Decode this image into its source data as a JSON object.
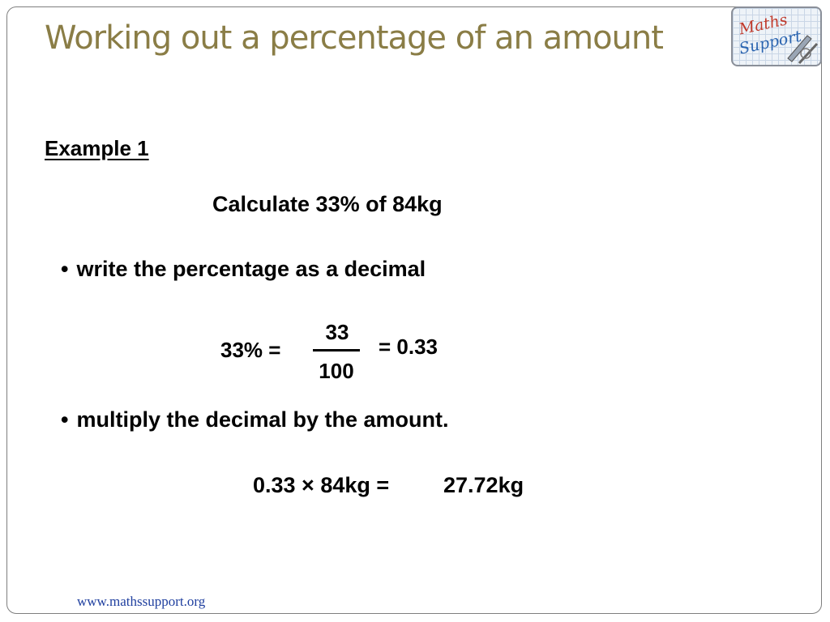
{
  "slide": {
    "title": "Working out a percentage of an amount",
    "example_label": "Example 1",
    "task": "Calculate 33% of 84kg",
    "bullet_symbol": "•",
    "step1": "write the percentage as a decimal",
    "fraction_lhs": "33% =",
    "fraction_numerator": "33",
    "fraction_denominator": "100",
    "fraction_rhs": "= 0.33",
    "step2": "multiply the decimal by the amount.",
    "calculation": "0.33 × 84kg =",
    "result": "27.72kg",
    "footer_url": "www.mathssupport.org"
  },
  "logo": {
    "line1": "Maths",
    "line2": "Support",
    "icon": "maths-support-logo-icon"
  },
  "colors": {
    "title": "#8a7d46",
    "footer_link": "#1f3f9f",
    "logo_text": "#c0392b",
    "logo_text_2": "#2a64b0",
    "border": "#7f7f7f"
  }
}
